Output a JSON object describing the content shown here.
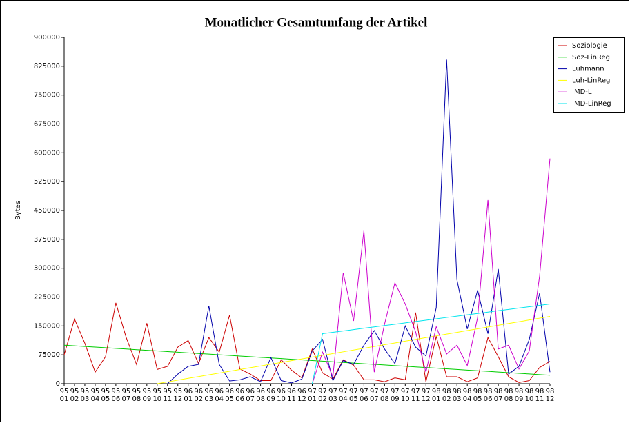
{
  "chart_data": {
    "type": "line",
    "title": "Monatlicher Gesamtumfang der Artikel",
    "y_label": "Bytes",
    "categories": [
      [
        "95",
        "01"
      ],
      [
        "95",
        "02"
      ],
      [
        "95",
        "03"
      ],
      [
        "95",
        "04"
      ],
      [
        "95",
        "05"
      ],
      [
        "95",
        "06"
      ],
      [
        "95",
        "07"
      ],
      [
        "95",
        "08"
      ],
      [
        "95",
        "09"
      ],
      [
        "95",
        "10"
      ],
      [
        "95",
        "11"
      ],
      [
        "95",
        "12"
      ],
      [
        "96",
        "01"
      ],
      [
        "96",
        "02"
      ],
      [
        "96",
        "03"
      ],
      [
        "96",
        "04"
      ],
      [
        "96",
        "05"
      ],
      [
        "96",
        "06"
      ],
      [
        "96",
        "07"
      ],
      [
        "96",
        "08"
      ],
      [
        "96",
        "09"
      ],
      [
        "96",
        "10"
      ],
      [
        "96",
        "11"
      ],
      [
        "96",
        "12"
      ],
      [
        "97",
        "01"
      ],
      [
        "97",
        "02"
      ],
      [
        "97",
        "03"
      ],
      [
        "97",
        "04"
      ],
      [
        "97",
        "05"
      ],
      [
        "97",
        "06"
      ],
      [
        "97",
        "07"
      ],
      [
        "97",
        "08"
      ],
      [
        "97",
        "09"
      ],
      [
        "97",
        "10"
      ],
      [
        "97",
        "11"
      ],
      [
        "97",
        "12"
      ],
      [
        "98",
        "01"
      ],
      [
        "98",
        "02"
      ],
      [
        "98",
        "03"
      ],
      [
        "98",
        "04"
      ],
      [
        "98",
        "05"
      ],
      [
        "98",
        "06"
      ],
      [
        "98",
        "07"
      ],
      [
        "98",
        "08"
      ],
      [
        "98",
        "09"
      ],
      [
        "98",
        "10"
      ],
      [
        "98",
        "11"
      ],
      [
        "98",
        "12"
      ]
    ],
    "ylim": [
      0,
      900000
    ],
    "yticks": [
      0,
      75000,
      150000,
      225000,
      300000,
      375000,
      450000,
      525000,
      600000,
      675000,
      750000,
      825000,
      900000
    ],
    "legend": "top-right",
    "series": [
      {
        "name": "Soziologie",
        "color": "#cc0000",
        "values": [
          75000,
          168000,
          105000,
          30000,
          70000,
          210000,
          120000,
          50000,
          157000,
          37000,
          45000,
          95000,
          112000,
          52000,
          120000,
          82000,
          178000,
          38000,
          25000,
          8000,
          8000,
          62000,
          35000,
          15000,
          90000,
          28000,
          12000,
          62000,
          48000,
          10000,
          10000,
          5000,
          15000,
          10000,
          185000,
          5000,
          123000,
          18000,
          18000,
          5000,
          15000,
          120000,
          70000,
          18000,
          3000,
          8000,
          42000,
          58000
        ]
      },
      {
        "name": "Soz-LinReg",
        "color": "#00cc00",
        "values": [
          100000,
          98340,
          96680,
          95020,
          93360,
          91700,
          90040,
          88380,
          86720,
          85060,
          83400,
          81740,
          80080,
          78420,
          76760,
          75100,
          73440,
          71780,
          70120,
          68460,
          66800,
          65140,
          63480,
          61820,
          60160,
          58500,
          56840,
          55180,
          53520,
          51860,
          50200,
          48540,
          46880,
          45220,
          43560,
          41900,
          40240,
          38580,
          36920,
          35260,
          33600,
          31940,
          30280,
          28620,
          26960,
          25300,
          23640,
          21980
        ]
      },
      {
        "name": "Luhmann",
        "color": "#0000aa",
        "values": [
          null,
          null,
          null,
          null,
          null,
          null,
          null,
          null,
          null,
          null,
          0,
          25000,
          45000,
          50000,
          202000,
          50000,
          7000,
          10000,
          18000,
          5000,
          68000,
          8000,
          2000,
          12000,
          85000,
          115000,
          8000,
          60000,
          50000,
          100000,
          138000,
          90000,
          52000,
          150000,
          95000,
          72000,
          198000,
          842000,
          270000,
          142000,
          243000,
          130000,
          298000,
          25000,
          45000,
          115000,
          235000,
          30000
        ]
      },
      {
        "name": "Luh-LinReg",
        "color": "#ffff00",
        "values": [
          null,
          null,
          null,
          null,
          null,
          null,
          null,
          null,
          null,
          0,
          4600,
          9200,
          13800,
          18400,
          23000,
          27600,
          32200,
          36800,
          41400,
          46000,
          50600,
          55200,
          59800,
          64400,
          69000,
          73600,
          78200,
          82800,
          87400,
          92000,
          96600,
          101200,
          105800,
          110400,
          115000,
          119600,
          124200,
          128800,
          133400,
          138000,
          142600,
          147200,
          151800,
          156400,
          161000,
          165600,
          170200,
          174800
        ]
      },
      {
        "name": "IMD-L",
        "color": "#cc00cc",
        "values": [
          null,
          null,
          null,
          null,
          null,
          null,
          null,
          null,
          null,
          null,
          null,
          null,
          null,
          null,
          null,
          null,
          null,
          null,
          null,
          null,
          null,
          null,
          null,
          null,
          0,
          82000,
          18000,
          288000,
          163000,
          398000,
          30000,
          155000,
          262000,
          207000,
          135000,
          30000,
          148000,
          77000,
          100000,
          47000,
          172000,
          477000,
          90000,
          100000,
          38000,
          85000,
          280000,
          585000
        ]
      },
      {
        "name": "IMD-LinReg",
        "color": "#00e5ee",
        "values": [
          null,
          null,
          null,
          null,
          null,
          null,
          null,
          null,
          null,
          null,
          null,
          null,
          null,
          null,
          null,
          null,
          null,
          null,
          null,
          null,
          null,
          null,
          null,
          null,
          0,
          130000,
          133500,
          137000,
          140500,
          144000,
          147500,
          151000,
          154500,
          158000,
          161500,
          165000,
          168500,
          172000,
          175500,
          179000,
          182500,
          186000,
          189500,
          193000,
          196500,
          200000,
          203500,
          207000
        ]
      }
    ]
  }
}
